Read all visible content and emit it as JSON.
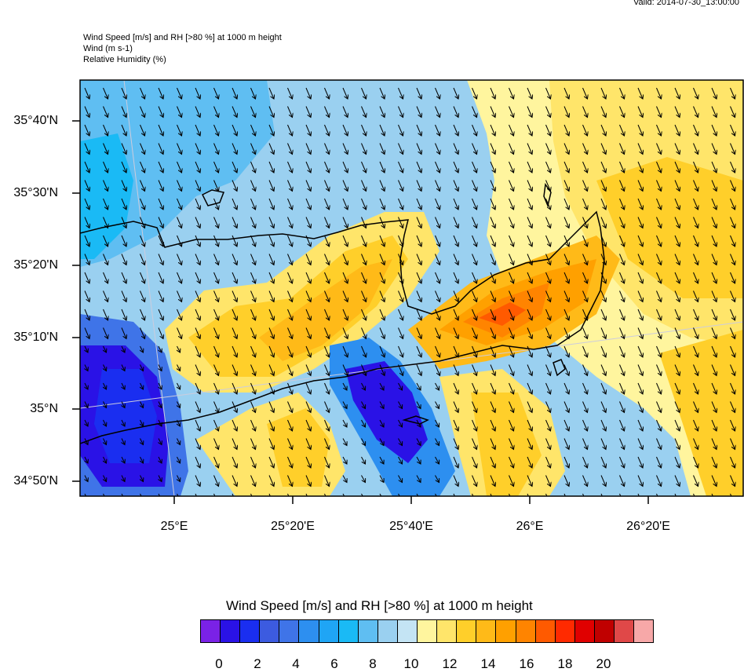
{
  "valid_time": "Valid: 2014-07-30_13:00:00",
  "header": {
    "line1": "Wind Speed [m/s] and RH [>80 %] at 1000 m height",
    "line2": "Wind   (m s-1)",
    "line3": "Relative Humidity    (%)"
  },
  "lat_labels": [
    "35°40'N",
    "35°30'N",
    "35°20'N",
    "35°10'N",
    "35°N",
    "34°50'N"
  ],
  "lon_labels": [
    "25°E",
    "25°20'E",
    "25°40'E",
    "26°E",
    "26°20'E"
  ],
  "colorbar": {
    "title": "Wind Speed [m/s] and RH [>80 %] at 1000 m height",
    "colors": [
      "#7a22e6",
      "#2a12e6",
      "#1a2ef0",
      "#3c5be0",
      "#3f74e8",
      "#2d8ff0",
      "#1fa5f5",
      "#1abaf5",
      "#5fbef2",
      "#9ad0f0",
      "#c4e4f4",
      "#fff59e",
      "#ffe56a",
      "#ffcf2a",
      "#ffba18",
      "#ffa000",
      "#ff8400",
      "#ff5a00",
      "#ff2a00",
      "#e00000",
      "#c00000",
      "#e04848",
      "#f7a8a8"
    ],
    "labels": [
      "0",
      "2",
      "4",
      "6",
      "8",
      "10",
      "12",
      "14",
      "16",
      "18",
      "20"
    ]
  }
}
